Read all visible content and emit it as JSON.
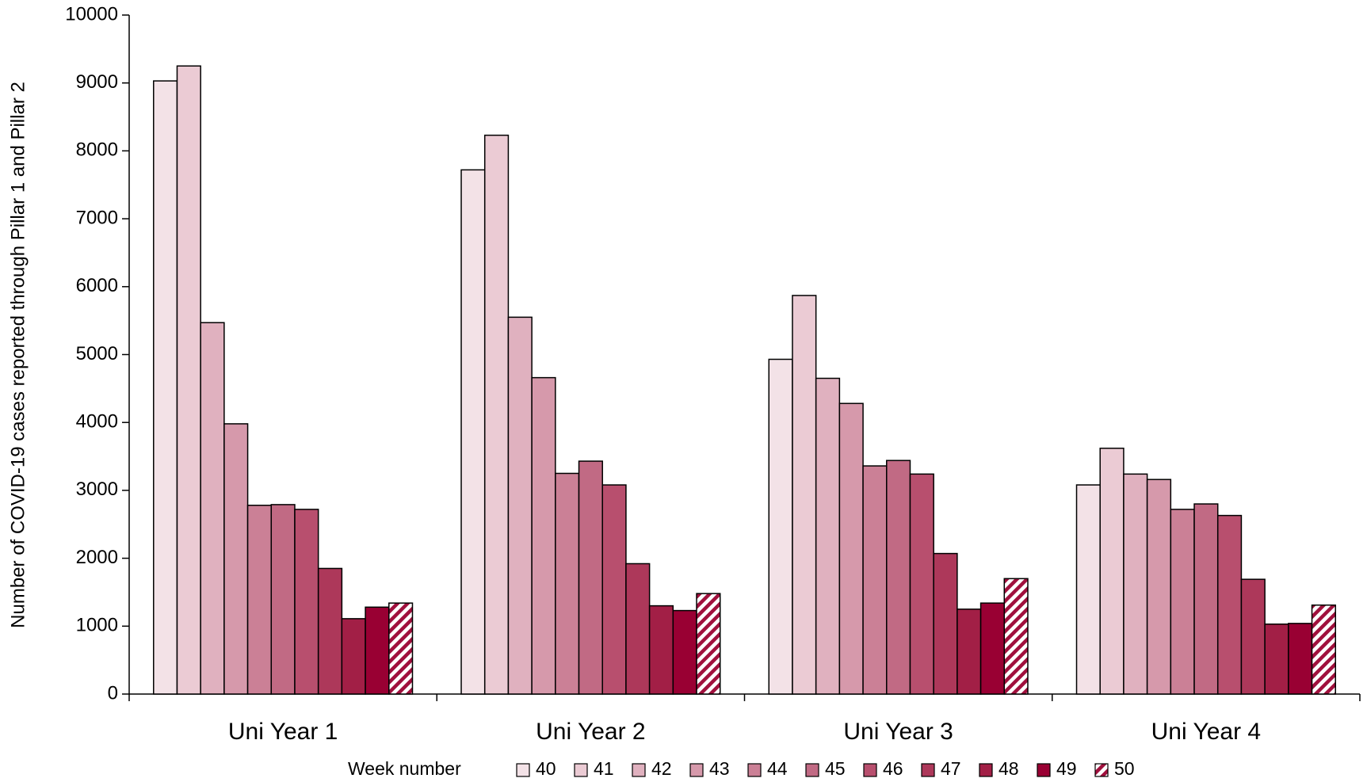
{
  "chart_data": {
    "type": "bar",
    "y_label": "Number of COVID-19 cases reported through Pillar 1 and Pillar 2",
    "legend_title": "Week number",
    "categories": [
      "Uni Year 1",
      "Uni Year 2",
      "Uni Year 3",
      "Uni Year 4"
    ],
    "series": [
      {
        "name": "40",
        "color": "#f3e2e7",
        "values": [
          9030,
          7720,
          4930,
          3080
        ]
      },
      {
        "name": "41",
        "color": "#ebcbd4",
        "values": [
          9250,
          8230,
          5870,
          3620
        ]
      },
      {
        "name": "42",
        "color": "#e0b1bf",
        "values": [
          5470,
          5550,
          4650,
          3240
        ]
      },
      {
        "name": "43",
        "color": "#d699ab",
        "values": [
          3980,
          4660,
          4280,
          3160
        ]
      },
      {
        "name": "44",
        "color": "#cb8096",
        "values": [
          2780,
          3250,
          3360,
          2720
        ]
      },
      {
        "name": "45",
        "color": "#c16a84",
        "values": [
          2790,
          3430,
          3440,
          2800
        ]
      },
      {
        "name": "46",
        "color": "#b84f6e",
        "values": [
          2720,
          3080,
          3240,
          2630
        ]
      },
      {
        "name": "47",
        "color": "#ad385a",
        "values": [
          1850,
          1920,
          2070,
          1690
        ]
      },
      {
        "name": "48",
        "color": "#a21f46",
        "values": [
          1110,
          1300,
          1250,
          1030
        ]
      },
      {
        "name": "49",
        "color": "#990033",
        "values": [
          1280,
          1230,
          1340,
          1040
        ]
      },
      {
        "name": "50",
        "color": "#a0103d",
        "pattern": "hatch",
        "values": [
          1340,
          1480,
          1700,
          1310
        ]
      }
    ],
    "ylim": [
      0,
      10000
    ],
    "yticks": [
      0,
      1000,
      2000,
      3000,
      4000,
      5000,
      6000,
      7000,
      8000,
      9000,
      10000
    ],
    "grid": false
  }
}
